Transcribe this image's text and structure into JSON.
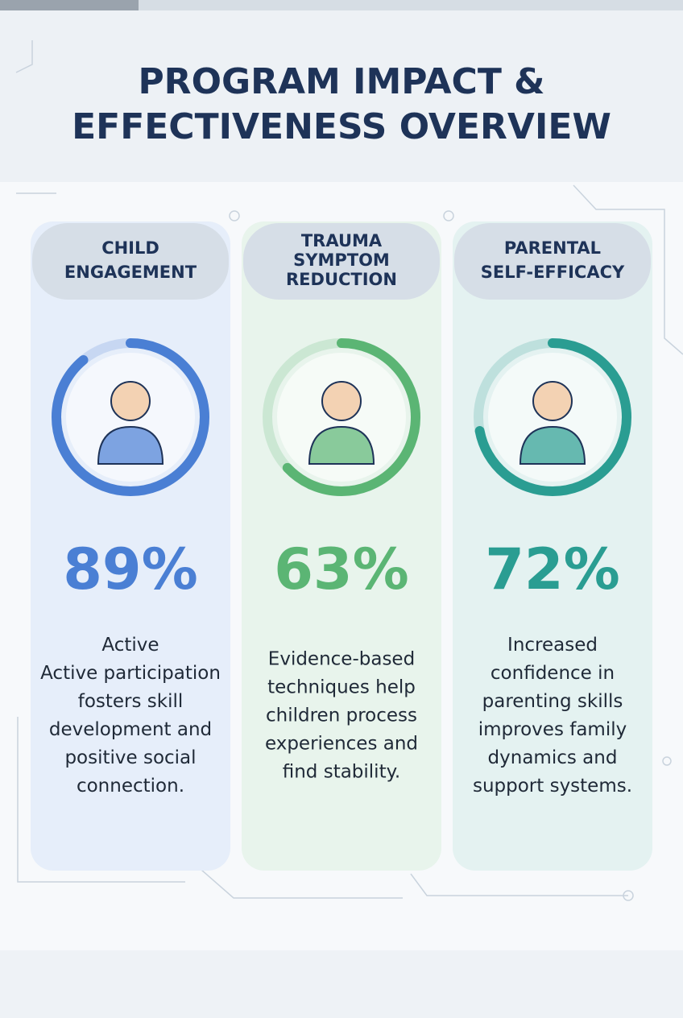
{
  "title": [
    "PROGRAM IMPACT &",
    "EFFECTIVENESS OVERVIEW"
  ],
  "cards": [
    {
      "heading": [
        "CHILD",
        "ENGAGEMENT"
      ],
      "value": 89,
      "value_label": "89%",
      "color": "#4a7fd4",
      "text": [
        "Active",
        "Active participation",
        "fosters skill",
        "development and",
        "positive social",
        "connection."
      ]
    },
    {
      "heading": [
        "TRAUMA",
        "SYMPTOM",
        "REDUCTION"
      ],
      "value": 63,
      "value_label": "63%",
      "color": "#5bb574",
      "text": [
        "Evidence-based",
        "techniques help",
        "children process",
        "experiences and",
        "find stability."
      ]
    },
    {
      "heading": [
        "PARENTAL",
        "SELF-EFFICACY"
      ],
      "value": 72,
      "value_label": "72%",
      "color": "#2a9d92",
      "text": [
        "Increased",
        "confidence in",
        "parenting skills",
        "improves family",
        "dynamics and",
        "support systems."
      ]
    }
  ]
}
